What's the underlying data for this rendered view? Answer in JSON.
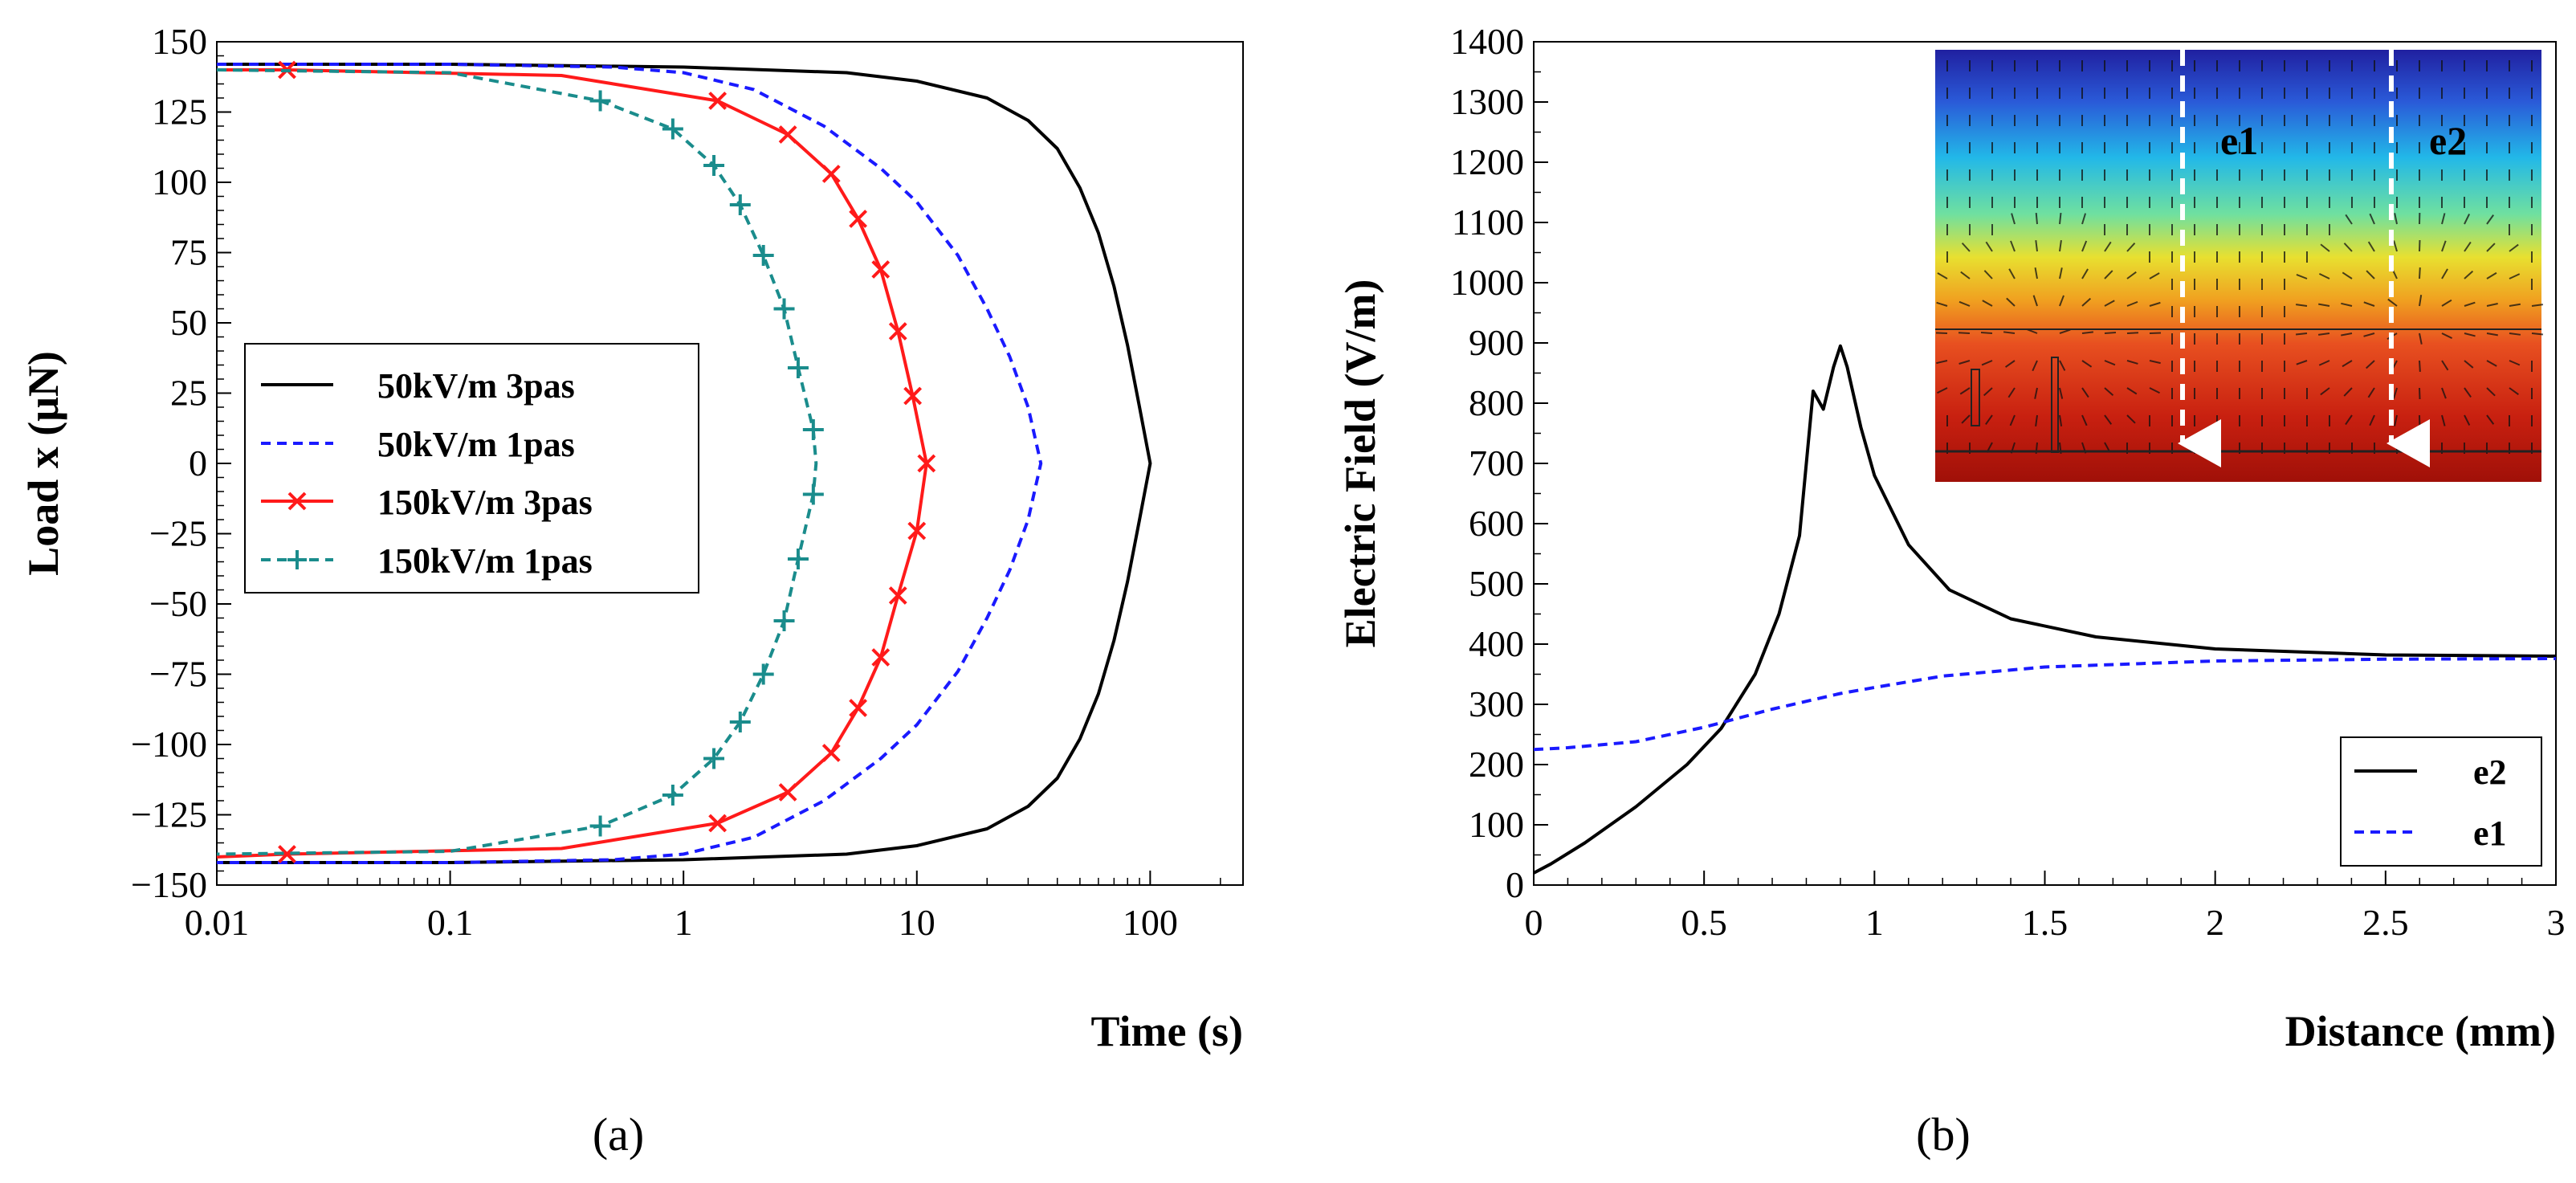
{
  "chart_data": [
    {
      "id": "a",
      "type": "line",
      "caption": "(a)",
      "xlabel": "Time (s)",
      "ylabel": "Load x (μN)",
      "xscale": "log",
      "xlim": [
        0.01,
        250
      ],
      "ylim": [
        -150,
        150
      ],
      "xticks": [
        0.01,
        0.1,
        1,
        10,
        100
      ],
      "xtick_labels": [
        "0.01",
        "0.1",
        "1",
        "10",
        "100"
      ],
      "yticks": [
        150,
        125,
        100,
        75,
        50,
        25,
        0,
        -25,
        -50,
        -75,
        -100,
        -125,
        -150
      ],
      "ytick_labels": [
        "150",
        "125",
        "100",
        "75",
        "50",
        "25",
        "0",
        "−25",
        "−50",
        "−75",
        "−100",
        "−125",
        "−150"
      ],
      "legend_position": "center-left",
      "series": [
        {
          "name": "50kV/m 3pas",
          "color": "#000000",
          "dash": "solid",
          "marker": "none",
          "x": [
            0.01,
            0.1,
            1,
            5,
            10,
            20,
            30,
            40,
            50,
            60,
            70,
            80,
            90,
            100,
            90,
            80,
            70,
            60,
            50,
            40,
            30,
            20,
            10,
            5,
            1,
            0.1,
            0.01
          ],
          "y": [
            142,
            142,
            141,
            139,
            136,
            130,
            122,
            112,
            98,
            82,
            63,
            42,
            20,
            0,
            -20,
            -42,
            -63,
            -82,
            -98,
            -112,
            -122,
            -130,
            -136,
            -139,
            -141,
            -142,
            -142
          ]
        },
        {
          "name": "50kV/m 1pas",
          "color": "#1a1aff",
          "dash": "dashed",
          "marker": "none",
          "x": [
            0.01,
            0.1,
            0.5,
            1,
            2,
            4,
            7,
            10,
            15,
            20,
            25,
            30,
            34,
            30,
            25,
            20,
            15,
            10,
            7,
            4,
            2,
            1,
            0.5,
            0.1,
            0.01
          ],
          "y": [
            142,
            142,
            141,
            139,
            133,
            120,
            105,
            93,
            74,
            55,
            38,
            20,
            0,
            -20,
            -38,
            -55,
            -74,
            -93,
            -105,
            -120,
            -133,
            -139,
            -141,
            -142,
            -142
          ]
        },
        {
          "name": "150kV/m 3pas",
          "color": "#ff1a1a",
          "dash": "solid",
          "marker": "x",
          "marker_x": [
            0.02,
            1.4,
            2.8,
            4.3,
            5.6,
            7.0,
            8.3,
            9.6,
            11.0,
            10.0,
            8.3,
            7.0,
            5.6,
            4.3,
            2.8,
            1.4,
            0.02
          ],
          "marker_y": [
            140,
            129,
            117,
            103,
            87,
            69,
            47,
            24,
            0,
            -24,
            -47,
            -69,
            -87,
            -103,
            -117,
            -128,
            -139
          ],
          "x": [
            0.01,
            0.02,
            0.3,
            1.4,
            2.8,
            4.3,
            5.6,
            7.0,
            8.3,
            9.6,
            11.0,
            10.0,
            8.3,
            7.0,
            5.6,
            4.3,
            2.8,
            1.4,
            0.3,
            0.02,
            0.01
          ],
          "y": [
            140,
            140,
            138,
            129,
            117,
            103,
            87,
            69,
            47,
            24,
            0,
            -24,
            -47,
            -69,
            -87,
            -103,
            -117,
            -128,
            -137,
            -139,
            -140
          ]
        },
        {
          "name": "150kV/m 1pas",
          "color": "#1a8c8c",
          "dash": "dashed",
          "marker": "+",
          "marker_x": [
            0.44,
            0.9,
            1.35,
            1.75,
            2.2,
            2.7,
            3.1,
            3.6,
            3.6,
            3.1,
            2.7,
            2.2,
            1.75,
            1.35,
            0.9,
            0.44
          ],
          "marker_y": [
            129,
            119,
            106,
            92,
            74,
            55,
            34,
            12,
            -11,
            -34,
            -56,
            -75,
            -92,
            -105,
            -118,
            -129
          ],
          "x": [
            0.01,
            0.1,
            0.44,
            0.9,
            1.35,
            1.75,
            2.2,
            2.7,
            3.1,
            3.6,
            3.7,
            3.6,
            3.1,
            2.7,
            2.2,
            1.75,
            1.35,
            0.9,
            0.44,
            0.1,
            0.01
          ],
          "y": [
            140,
            139,
            129,
            119,
            106,
            92,
            74,
            55,
            34,
            12,
            0,
            -11,
            -34,
            -56,
            -75,
            -92,
            -105,
            -118,
            -129,
            -138,
            -139
          ]
        }
      ]
    },
    {
      "id": "b",
      "type": "line",
      "caption": "(b)",
      "xlabel": "Distance (mm)",
      "ylabel": "Electric Field (V/m)",
      "xlim": [
        0,
        3
      ],
      "ylim": [
        0,
        1400
      ],
      "xticks": [
        0,
        0.5,
        1,
        1.5,
        2,
        2.5,
        3
      ],
      "xtick_labels": [
        "0",
        "0.5",
        "1",
        "1.5",
        "2",
        "2.5",
        "3"
      ],
      "yticks": [
        0,
        100,
        200,
        300,
        400,
        500,
        600,
        700,
        800,
        900,
        1000,
        1100,
        1200,
        1300,
        1400
      ],
      "ytick_labels": [
        "0",
        "100",
        "200",
        "300",
        "400",
        "500",
        "600",
        "700",
        "800",
        "900",
        "1000",
        "1100",
        "1200",
        "1300",
        "1400"
      ],
      "legend_position": "bottom-right",
      "inset": {
        "description_labels": [
          "e1",
          "e2"
        ],
        "position": "top-right"
      },
      "series": [
        {
          "name": "e2",
          "color": "#000000",
          "dash": "solid",
          "x": [
            0,
            0.05,
            0.15,
            0.3,
            0.45,
            0.55,
            0.65,
            0.72,
            0.78,
            0.82,
            0.85,
            0.88,
            0.9,
            0.92,
            0.96,
            1.0,
            1.1,
            1.22,
            1.4,
            1.65,
            2.0,
            2.5,
            3.0
          ],
          "y": [
            20,
            35,
            70,
            130,
            200,
            260,
            350,
            450,
            580,
            820,
            790,
            860,
            895,
            860,
            760,
            680,
            565,
            490,
            442,
            412,
            392,
            382,
            380
          ]
        },
        {
          "name": "e1",
          "color": "#1a1aff",
          "dash": "dashed",
          "x": [
            0,
            0.1,
            0.3,
            0.5,
            0.7,
            0.9,
            1.0,
            1.2,
            1.5,
            2.0,
            2.5,
            3.0
          ],
          "y": [
            225,
            228,
            238,
            262,
            292,
            318,
            328,
            347,
            362,
            372,
            375,
            376
          ]
        }
      ]
    }
  ],
  "inset_labels": {
    "e1": "e1",
    "e2": "e2"
  }
}
